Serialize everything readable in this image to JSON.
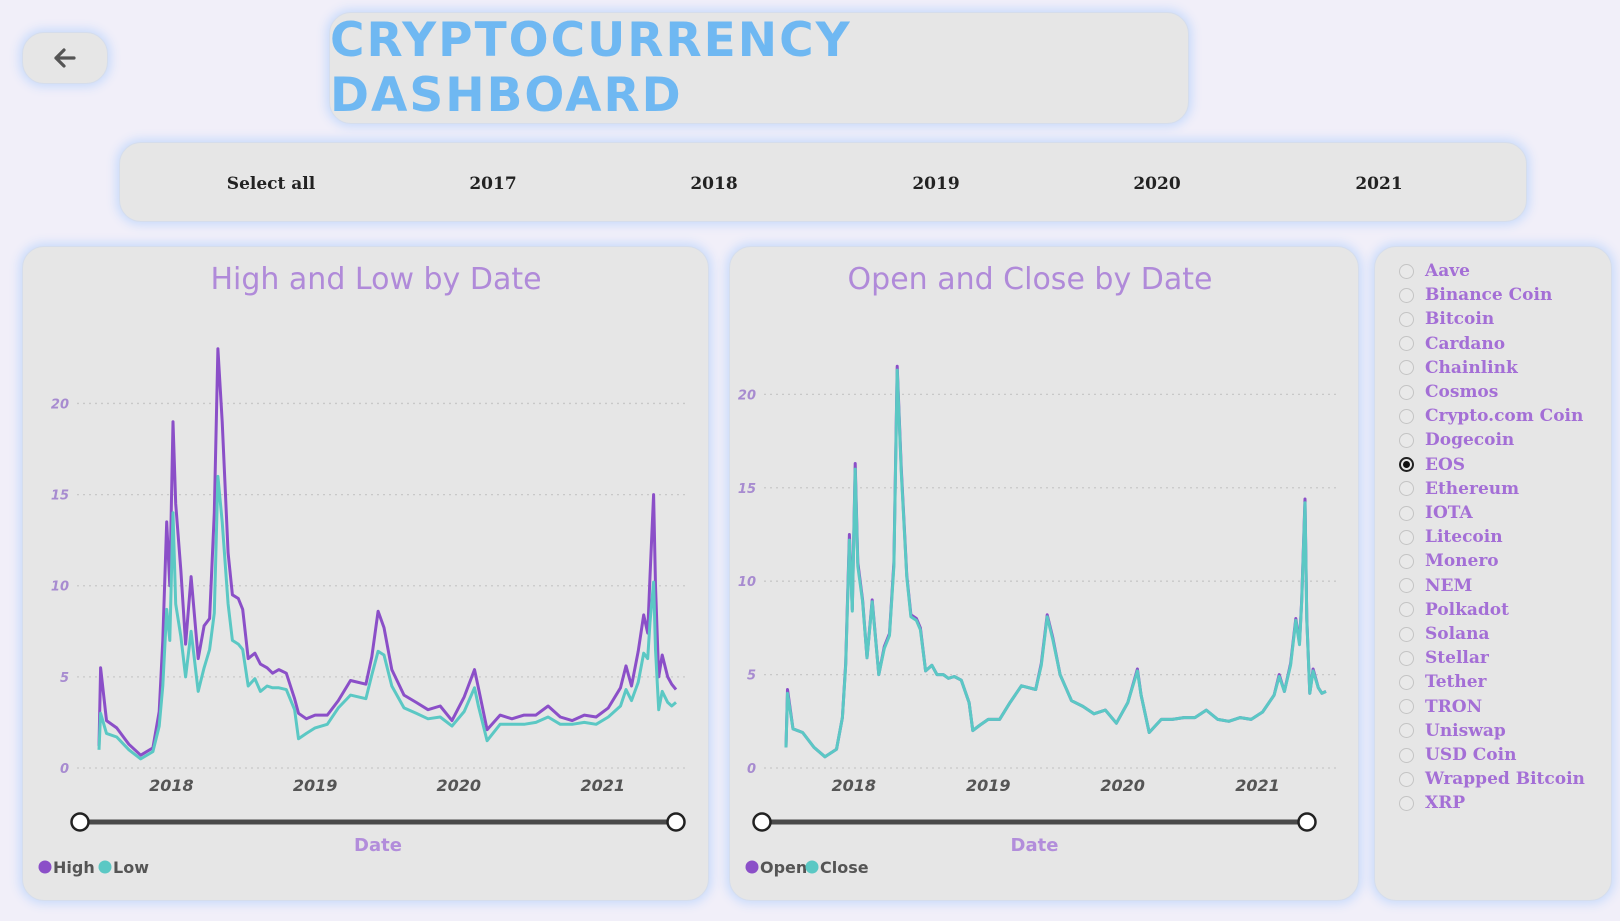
{
  "back_button": {
    "icon": "arrow-left-icon"
  },
  "title": "CRYPTOCURRENCY DASHBOARD",
  "year_slicer": {
    "items": [
      "Select all",
      "2017",
      "2018",
      "2019",
      "2020",
      "2021"
    ]
  },
  "colors": {
    "high": "#8b4fc8",
    "low": "#5bc8c4",
    "open": "#8b4fc8",
    "close": "#5bc8c4",
    "title": "#6fb8f2",
    "chart_title": "#b08ad9"
  },
  "charts": [
    {
      "title": "High and Low by Date",
      "axis_title": "Date",
      "legend": [
        "High",
        "Low"
      ]
    },
    {
      "title": "Open and Close by Date",
      "axis_title": "Date",
      "legend": [
        "Open",
        "Close"
      ]
    }
  ],
  "chart_data": [
    {
      "type": "line",
      "title": "High and Low by Date",
      "xlabel": "Date",
      "ylabel": "",
      "xlim": [
        "2017-07-01",
        "2021-07-06"
      ],
      "ylim": [
        0,
        22
      ],
      "yticks": [
        0,
        5,
        10,
        15,
        20
      ],
      "xticks": [
        "2018",
        "2019",
        "2020",
        "2021"
      ],
      "legend_position": "bottom-left",
      "grid": true,
      "x": [
        "2017-07-01",
        "2017-07-05",
        "2017-07-20",
        "2017-08-15",
        "2017-09-15",
        "2017-10-15",
        "2017-11-15",
        "2017-12-01",
        "2017-12-10",
        "2017-12-20",
        "2017-12-28",
        "2018-01-05",
        "2018-01-12",
        "2018-01-25",
        "2018-02-06",
        "2018-02-20",
        "2018-03-10",
        "2018-03-25",
        "2018-04-08",
        "2018-04-20",
        "2018-04-29",
        "2018-05-10",
        "2018-05-25",
        "2018-06-05",
        "2018-06-20",
        "2018-07-01",
        "2018-07-15",
        "2018-08-01",
        "2018-08-15",
        "2018-09-01",
        "2018-09-15",
        "2018-10-01",
        "2018-10-20",
        "2018-11-10",
        "2018-11-20",
        "2018-12-10",
        "2019-01-01",
        "2019-02-01",
        "2019-03-01",
        "2019-04-01",
        "2019-05-10",
        "2019-05-25",
        "2019-06-10",
        "2019-06-25",
        "2019-07-15",
        "2019-08-15",
        "2019-09-15",
        "2019-10-15",
        "2019-11-15",
        "2019-12-15",
        "2020-01-15",
        "2020-02-10",
        "2020-02-20",
        "2020-03-13",
        "2020-04-15",
        "2020-05-15",
        "2020-06-15",
        "2020-07-15",
        "2020-08-15",
        "2020-09-15",
        "2020-10-15",
        "2020-11-15",
        "2020-12-15",
        "2021-01-15",
        "2021-02-15",
        "2021-03-01",
        "2021-03-15",
        "2021-04-01",
        "2021-04-15",
        "2021-04-25",
        "2021-05-01",
        "2021-05-10",
        "2021-05-15",
        "2021-05-23",
        "2021-06-01",
        "2021-06-15",
        "2021-06-25",
        "2021-07-06"
      ],
      "series": [
        {
          "name": "High",
          "values": [
            1.2,
            5.5,
            2.6,
            2.2,
            1.3,
            0.7,
            1.1,
            3.1,
            7.0,
            13.5,
            10.0,
            19.0,
            14.5,
            10.8,
            6.8,
            10.5,
            6.0,
            7.8,
            8.2,
            14.0,
            23.0,
            19.0,
            11.8,
            9.5,
            9.3,
            8.7,
            6.0,
            6.3,
            5.7,
            5.5,
            5.2,
            5.4,
            5.2,
            3.8,
            3.0,
            2.7,
            2.9,
            2.9,
            3.7,
            4.8,
            4.6,
            6.1,
            8.6,
            7.7,
            5.4,
            4.0,
            3.6,
            3.2,
            3.4,
            2.6,
            3.9,
            5.4,
            4.4,
            2.1,
            2.9,
            2.7,
            2.9,
            2.9,
            3.4,
            2.8,
            2.6,
            2.9,
            2.8,
            3.3,
            4.4,
            5.6,
            4.5,
            6.4,
            8.4,
            7.4,
            10.5,
            15.0,
            10.0,
            5.0,
            6.2,
            5.0,
            4.6,
            4.3
          ]
        },
        {
          "name": "Low",
          "values": [
            1.0,
            3.0,
            1.9,
            1.7,
            1.0,
            0.5,
            0.9,
            2.3,
            4.5,
            8.7,
            7.0,
            14.0,
            9.0,
            7.2,
            5.0,
            7.5,
            4.2,
            5.5,
            6.5,
            8.5,
            16.0,
            13.5,
            9.0,
            7.0,
            6.8,
            6.5,
            4.5,
            4.9,
            4.2,
            4.5,
            4.4,
            4.4,
            4.3,
            3.2,
            1.6,
            1.9,
            2.2,
            2.4,
            3.3,
            4.0,
            3.8,
            5.1,
            6.4,
            6.2,
            4.5,
            3.3,
            3.0,
            2.7,
            2.8,
            2.3,
            3.1,
            4.4,
            3.4,
            1.5,
            2.4,
            2.4,
            2.4,
            2.5,
            2.8,
            2.4,
            2.4,
            2.5,
            2.4,
            2.8,
            3.4,
            4.3,
            3.7,
            4.7,
            6.3,
            6.0,
            8.0,
            10.2,
            6.5,
            3.2,
            4.2,
            3.6,
            3.4,
            3.6
          ]
        }
      ]
    },
    {
      "type": "line",
      "title": "Open and Close by Date",
      "xlabel": "Date",
      "ylabel": "",
      "xlim": [
        "2017-07-01",
        "2021-07-06"
      ],
      "ylim": [
        0,
        22
      ],
      "yticks": [
        0,
        5,
        10,
        15,
        20
      ],
      "xticks": [
        "2018",
        "2019",
        "2020",
        "2021"
      ],
      "legend_position": "bottom-left",
      "grid": true,
      "x": [
        "2017-07-01",
        "2017-07-05",
        "2017-07-20",
        "2017-08-15",
        "2017-09-15",
        "2017-10-15",
        "2017-11-15",
        "2017-12-01",
        "2017-12-10",
        "2017-12-20",
        "2017-12-28",
        "2018-01-05",
        "2018-01-12",
        "2018-01-25",
        "2018-02-06",
        "2018-02-20",
        "2018-03-10",
        "2018-03-25",
        "2018-04-08",
        "2018-04-20",
        "2018-04-29",
        "2018-05-10",
        "2018-05-25",
        "2018-06-05",
        "2018-06-20",
        "2018-07-01",
        "2018-07-15",
        "2018-08-01",
        "2018-08-15",
        "2018-09-01",
        "2018-09-15",
        "2018-10-01",
        "2018-10-20",
        "2018-11-10",
        "2018-11-20",
        "2018-12-10",
        "2019-01-01",
        "2019-02-01",
        "2019-03-01",
        "2019-04-01",
        "2019-05-10",
        "2019-05-25",
        "2019-06-10",
        "2019-06-25",
        "2019-07-15",
        "2019-08-15",
        "2019-09-15",
        "2019-10-15",
        "2019-11-15",
        "2019-12-15",
        "2020-01-15",
        "2020-02-10",
        "2020-02-20",
        "2020-03-13",
        "2020-04-15",
        "2020-05-15",
        "2020-06-15",
        "2020-07-15",
        "2020-08-15",
        "2020-09-15",
        "2020-10-15",
        "2020-11-15",
        "2020-12-15",
        "2021-01-15",
        "2021-02-15",
        "2021-03-01",
        "2021-03-15",
        "2021-04-01",
        "2021-04-15",
        "2021-04-25",
        "2021-05-01",
        "2021-05-10",
        "2021-05-15",
        "2021-05-23",
        "2021-06-01",
        "2021-06-15",
        "2021-06-25",
        "2021-07-06"
      ],
      "series": [
        {
          "name": "Open",
          "values": [
            1.1,
            4.2,
            2.1,
            1.9,
            1.1,
            0.6,
            1.0,
            2.7,
            5.6,
            12.5,
            8.5,
            16.3,
            11.0,
            9.0,
            5.9,
            9.0,
            5.0,
            6.5,
            7.2,
            11.0,
            21.5,
            16.0,
            10.3,
            8.2,
            8.0,
            7.5,
            5.2,
            5.5,
            5.0,
            5.0,
            4.8,
            4.9,
            4.7,
            3.5,
            2.0,
            2.3,
            2.6,
            2.6,
            3.5,
            4.4,
            4.2,
            5.6,
            8.2,
            7.0,
            5.0,
            3.6,
            3.3,
            2.9,
            3.1,
            2.4,
            3.5,
            5.3,
            3.9,
            1.9,
            2.6,
            2.6,
            2.7,
            2.7,
            3.1,
            2.6,
            2.5,
            2.7,
            2.6,
            3.0,
            3.9,
            5.0,
            4.1,
            5.6,
            8.0,
            6.7,
            9.0,
            14.4,
            8.0,
            4.0,
            5.3,
            4.3,
            4.0,
            4.1
          ]
        },
        {
          "name": "Close",
          "values": [
            1.1,
            4.0,
            2.1,
            1.9,
            1.1,
            0.6,
            1.0,
            2.7,
            5.5,
            12.2,
            8.4,
            16.0,
            10.8,
            8.9,
            5.9,
            8.9,
            5.0,
            6.4,
            7.1,
            10.8,
            21.3,
            15.8,
            10.2,
            8.1,
            7.9,
            7.4,
            5.2,
            5.5,
            5.0,
            5.0,
            4.8,
            4.9,
            4.7,
            3.5,
            2.0,
            2.3,
            2.6,
            2.6,
            3.5,
            4.4,
            4.2,
            5.5,
            8.1,
            6.9,
            5.0,
            3.6,
            3.3,
            2.9,
            3.1,
            2.4,
            3.5,
            5.2,
            3.9,
            1.9,
            2.6,
            2.6,
            2.7,
            2.7,
            3.1,
            2.6,
            2.5,
            2.7,
            2.6,
            3.0,
            3.9,
            4.9,
            4.1,
            5.5,
            7.9,
            6.6,
            8.9,
            14.2,
            7.9,
            4.0,
            5.2,
            4.3,
            4.0,
            4.1
          ]
        }
      ]
    }
  ],
  "coins": {
    "items": [
      "Aave",
      "Binance Coin",
      "Bitcoin",
      "Cardano",
      "Chainlink",
      "Cosmos",
      "Crypto.com Coin",
      "Dogecoin",
      "EOS",
      "Ethereum",
      "IOTA",
      "Litecoin",
      "Monero",
      "NEM",
      "Polkadot",
      "Solana",
      "Stellar",
      "Tether",
      "TRON",
      "Uniswap",
      "USD Coin",
      "Wrapped Bitcoin",
      "XRP"
    ],
    "selected": "EOS"
  }
}
